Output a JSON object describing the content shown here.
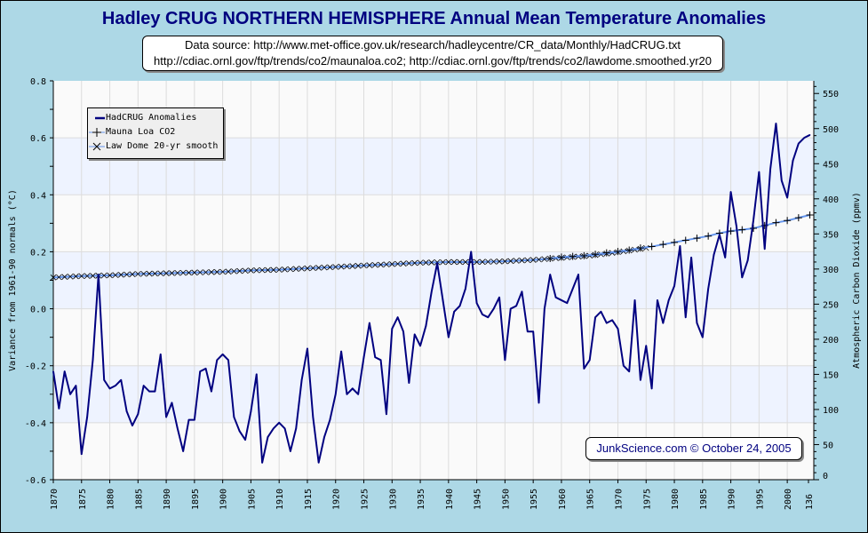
{
  "colors": {
    "background": "#add8e6",
    "plot_band": "#eef3ff",
    "plot_plain": "#fafafa",
    "temp_line": "#000080",
    "co2_line": "#6495ed",
    "title": "#000080"
  },
  "chart_data": {
    "type": "line",
    "title": "Hadley CRUG NORTHERN HEMISPHERE Annual Mean Temperature Anomalies",
    "source_lines": [
      "Data source: http://www.met-office.gov.uk/research/hadleycentre/CR_data/Monthly/HadCRUG.txt",
      "http://cdiac.ornl.gov/ftp/trends/co2/maunaloa.co2; http://cdiac.ornl.gov/ftp/trends/co2/lawdome.smoothed.yr20"
    ],
    "credit": "JunkScience.com © October 24, 2005",
    "ylabel": "Variance from 1961-90 normals (°C)",
    "y2label": "Atmospheric Carbon Dioxide (ppmv)",
    "xlim": [
      1870,
      2004.7
    ],
    "ylim": [
      -0.6,
      0.8
    ],
    "y2lim": [
      0,
      568
    ],
    "grid": true,
    "legend_position": "top-left",
    "x_tick_labels": [
      "1870",
      "1875",
      "1880",
      "1885",
      "1890",
      "1895",
      "1900",
      "1905",
      "1910",
      "1915",
      "1920",
      "1925",
      "1930",
      "1935",
      "1940",
      "1945",
      "1950",
      "1955",
      "1960",
      "1965",
      "1970",
      "1975",
      "1980",
      "1985",
      "1990",
      "1995",
      "2000",
      "136"
    ],
    "y_tick_labels": [
      "0.8",
      "0.6",
      "0.4",
      "0.2",
      "0.0",
      "-0.2",
      "-0.4",
      "-0.6"
    ],
    "y2_tick_labels": [
      "550",
      "500",
      "450",
      "400",
      "350",
      "300",
      "250",
      "200",
      "150",
      "100",
      "50",
      "0"
    ],
    "legend": [
      "HadCRUG Anomalies",
      "Mauna Loa CO2",
      "Law Dome 20-yr smooth"
    ],
    "series": [
      {
        "name": "HadCRUG Anomalies",
        "axis": "left",
        "x_start": 1870,
        "values": [
          -0.22,
          -0.35,
          -0.22,
          -0.3,
          -0.27,
          -0.51,
          -0.38,
          -0.18,
          0.12,
          -0.25,
          -0.28,
          -0.27,
          -0.25,
          -0.36,
          -0.41,
          -0.37,
          -0.27,
          -0.29,
          -0.29,
          -0.16,
          -0.38,
          -0.33,
          -0.42,
          -0.5,
          -0.39,
          -0.39,
          -0.22,
          -0.21,
          -0.29,
          -0.18,
          -0.16,
          -0.18,
          -0.38,
          -0.43,
          -0.46,
          -0.36,
          -0.23,
          -0.54,
          -0.45,
          -0.42,
          -0.4,
          -0.42,
          -0.5,
          -0.42,
          -0.25,
          -0.14,
          -0.38,
          -0.54,
          -0.45,
          -0.39,
          -0.3,
          -0.15,
          -0.3,
          -0.28,
          -0.3,
          -0.17,
          -0.05,
          -0.17,
          -0.18,
          -0.37,
          -0.07,
          -0.03,
          -0.08,
          -0.26,
          -0.09,
          -0.13,
          -0.06,
          0.06,
          0.16,
          0.03,
          -0.1,
          -0.01,
          0.01,
          0.07,
          0.2,
          0.02,
          -0.02,
          -0.03,
          0.0,
          0.04,
          -0.18,
          0.0,
          0.01,
          0.06,
          -0.08,
          -0.08,
          -0.33,
          0.0,
          0.12,
          0.04,
          0.03,
          0.02,
          0.07,
          0.12,
          -0.21,
          -0.18,
          -0.03,
          -0.01,
          -0.05,
          -0.04,
          -0.07,
          -0.2,
          -0.22,
          0.03,
          -0.25,
          -0.13,
          -0.28,
          0.03,
          -0.05,
          0.03,
          0.08,
          0.22,
          -0.03,
          0.18,
          -0.05,
          -0.1,
          0.07,
          0.19,
          0.26,
          0.18,
          0.41,
          0.29,
          0.11,
          0.17,
          0.31,
          0.48,
          0.21,
          0.49,
          0.65,
          0.45,
          0.39,
          0.52,
          0.58,
          0.6,
          0.61
        ]
      },
      {
        "name": "Law Dome 20-yr smooth",
        "axis": "right",
        "x": [
          1870,
          1875,
          1880,
          1885,
          1890,
          1895,
          1900,
          1905,
          1910,
          1915,
          1920,
          1925,
          1930,
          1935,
          1940,
          1945,
          1950,
          1955,
          1960,
          1965,
          1970,
          1975
        ],
        "values": [
          288,
          290,
          291,
          293,
          294,
          295,
          296,
          298,
          299,
          301,
          303,
          305,
          307,
          309,
          310,
          310,
          311,
          313,
          316,
          319,
          324,
          330
        ]
      },
      {
        "name": "Mauna Loa CO2",
        "axis": "right",
        "x": [
          1958,
          1960,
          1962,
          1964,
          1966,
          1968,
          1970,
          1972,
          1974,
          1976,
          1978,
          1980,
          1982,
          1984,
          1986,
          1988,
          1990,
          1992,
          1994,
          1996,
          1998,
          2000,
          2002,
          2004
        ],
        "values": [
          315,
          317,
          318,
          319,
          321,
          323,
          325,
          327,
          330,
          332,
          335,
          338,
          341,
          344,
          347,
          351,
          354,
          356,
          358,
          362,
          366,
          369,
          373,
          377
        ]
      }
    ]
  }
}
